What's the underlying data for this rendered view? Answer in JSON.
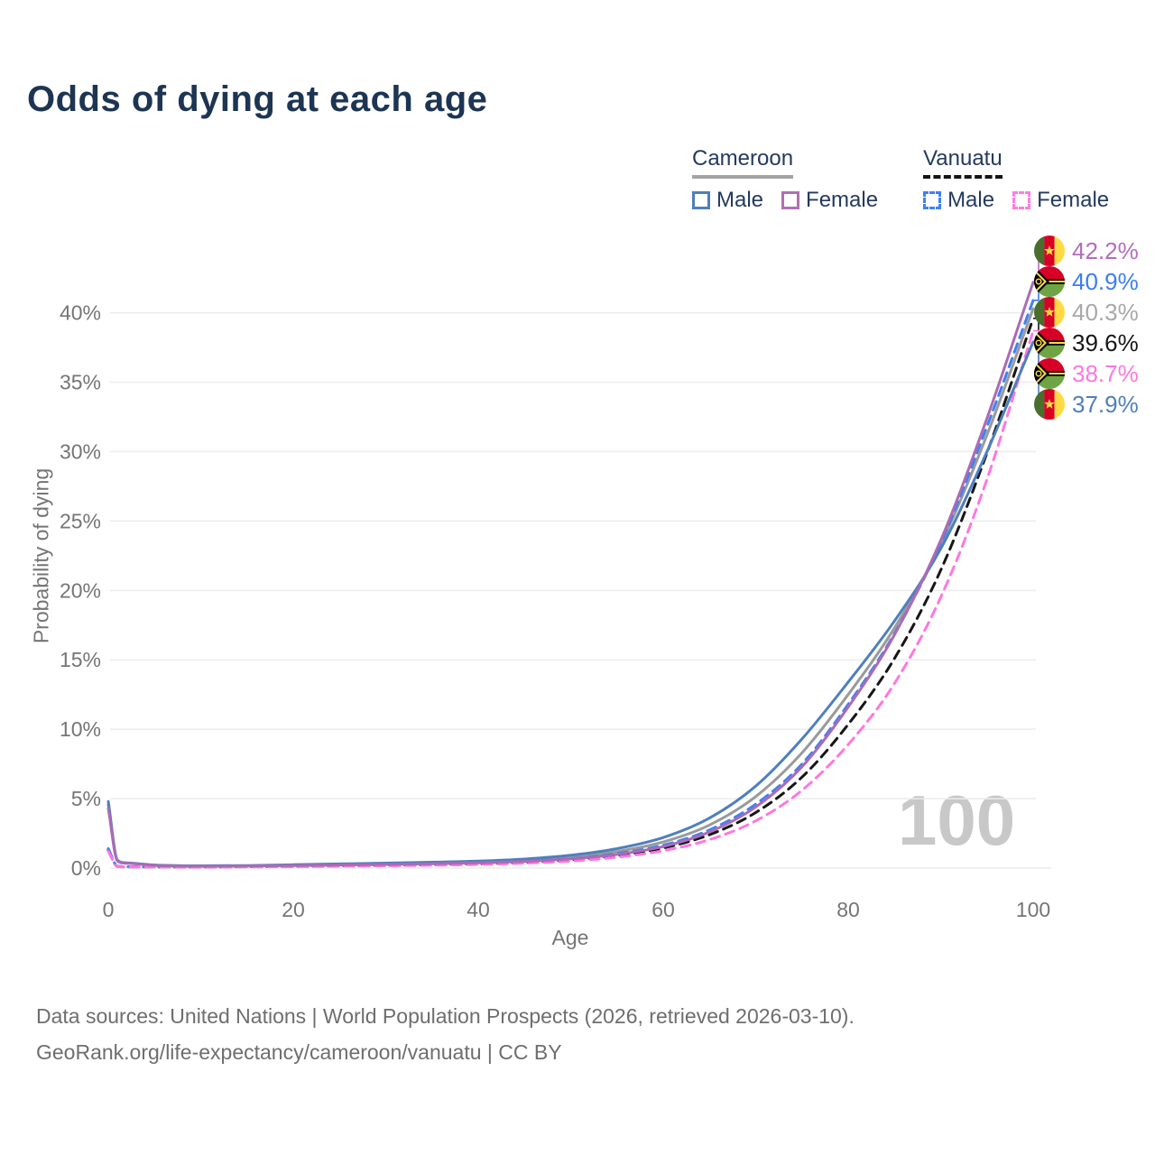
{
  "title": "Odds of dying at each age",
  "legend": {
    "groups": [
      {
        "name": "Cameroon",
        "line_style": "solid",
        "underline_color": "#a3a3a3",
        "items": [
          {
            "label": "Male",
            "color": "#4e7fbe"
          },
          {
            "label": "Female",
            "color": "#b070b2"
          }
        ]
      },
      {
        "name": "Vanuatu",
        "line_style": "dashed",
        "underline_color": "#141414",
        "items": [
          {
            "label": "Male",
            "color": "#3f82f2"
          },
          {
            "label": "Female",
            "color": "#ff7ce2"
          }
        ]
      }
    ]
  },
  "axes": {
    "x_label": "Age",
    "y_label": "Probability of dying"
  },
  "watermark": "100",
  "annotations": [
    {
      "flag": "cameroon",
      "series": "Cameroon Female",
      "value": "42.2%",
      "color": "#b46cbe"
    },
    {
      "flag": "vanuatu",
      "series": "Vanuatu Male",
      "value": "40.9%",
      "color": "#3b7ef0"
    },
    {
      "flag": "cameroon",
      "series": "Cameroon Both sexes",
      "value": "40.3%",
      "color": "#a8a8a8"
    },
    {
      "flag": "vanuatu",
      "series": "Vanuatu Both sexes",
      "value": "39.6%",
      "color": "#161616"
    },
    {
      "flag": "vanuatu",
      "series": "Vanuatu Female",
      "value": "38.7%",
      "color": "#ff77df"
    },
    {
      "flag": "cameroon",
      "series": "Cameroon Male",
      "value": "37.9%",
      "color": "#4e7fbe"
    }
  ],
  "footer": {
    "line1": "Data sources: United Nations | World Population Prospects (2026, retrieved 2026-03-10).",
    "line2": "GeoRank.org/life-expectancy/cameroon/vanuatu | CC BY"
  },
  "chart_data": {
    "type": "line",
    "title": "Odds of dying at each age",
    "xlabel": "Age",
    "ylabel": "Probability of dying",
    "xlim": [
      0,
      100
    ],
    "ylim": [
      0,
      44
    ],
    "x_ticks": [
      0,
      20,
      40,
      60,
      80,
      100
    ],
    "y_ticks": [
      0,
      5,
      10,
      15,
      20,
      25,
      30,
      35,
      40
    ],
    "y_tick_suffix": "%",
    "grid": true,
    "legend_position": "top-right",
    "x": [
      0,
      1,
      2,
      5,
      10,
      15,
      20,
      25,
      30,
      35,
      40,
      45,
      50,
      55,
      60,
      65,
      70,
      75,
      80,
      85,
      90,
      95,
      100
    ],
    "series": [
      {
        "name": "Cameroon Both sexes",
        "color": "#9a9a9a",
        "dashed": false,
        "values": [
          4.55,
          0.52,
          0.36,
          0.21,
          0.15,
          0.16,
          0.21,
          0.26,
          0.31,
          0.37,
          0.44,
          0.56,
          0.79,
          1.19,
          1.88,
          3.1,
          5.15,
          8.3,
          12.5,
          17.3,
          23.3,
          31.2,
          40.3
        ]
      },
      {
        "name": "Vanuatu Both sexes",
        "color": "#161616",
        "dashed": true,
        "values": [
          1.3,
          0.12,
          0.09,
          0.075,
          0.07,
          0.095,
          0.125,
          0.16,
          0.195,
          0.24,
          0.305,
          0.41,
          0.59,
          0.91,
          1.45,
          2.4,
          4.0,
          6.55,
          10.35,
          15.1,
          21.45,
          29.9,
          39.6
        ]
      },
      {
        "name": "Vanuatu Male",
        "color": "#3f82f2",
        "dashed": true,
        "values": [
          1.4,
          0.13,
          0.1,
          0.08,
          0.08,
          0.11,
          0.15,
          0.19,
          0.23,
          0.28,
          0.35,
          0.47,
          0.68,
          1.05,
          1.65,
          2.75,
          4.6,
          7.5,
          11.8,
          16.9,
          23.4,
          31.8,
          40.9
        ]
      },
      {
        "name": "Vanuatu Female",
        "color": "#ff77df",
        "dashed": true,
        "values": [
          1.2,
          0.11,
          0.08,
          0.07,
          0.06,
          0.08,
          0.1,
          0.13,
          0.16,
          0.2,
          0.26,
          0.35,
          0.5,
          0.78,
          1.25,
          2.05,
          3.4,
          5.6,
          8.9,
          13.3,
          19.5,
          28.0,
          38.7
        ]
      },
      {
        "name": "Cameroon Male",
        "color": "#4e7fbe",
        "dashed": false,
        "values": [
          4.8,
          0.55,
          0.38,
          0.22,
          0.16,
          0.18,
          0.24,
          0.3,
          0.36,
          0.42,
          0.5,
          0.65,
          0.92,
          1.4,
          2.2,
          3.6,
          5.9,
          9.3,
          13.4,
          17.8,
          23.0,
          30.0,
          37.9
        ]
      },
      {
        "name": "Cameroon Female",
        "color": "#ab6bb5",
        "dashed": false,
        "values": [
          4.3,
          0.5,
          0.34,
          0.19,
          0.13,
          0.14,
          0.18,
          0.22,
          0.26,
          0.31,
          0.38,
          0.48,
          0.66,
          0.98,
          1.55,
          2.6,
          4.4,
          7.3,
          11.6,
          16.8,
          23.6,
          32.4,
          42.2
        ]
      }
    ]
  }
}
